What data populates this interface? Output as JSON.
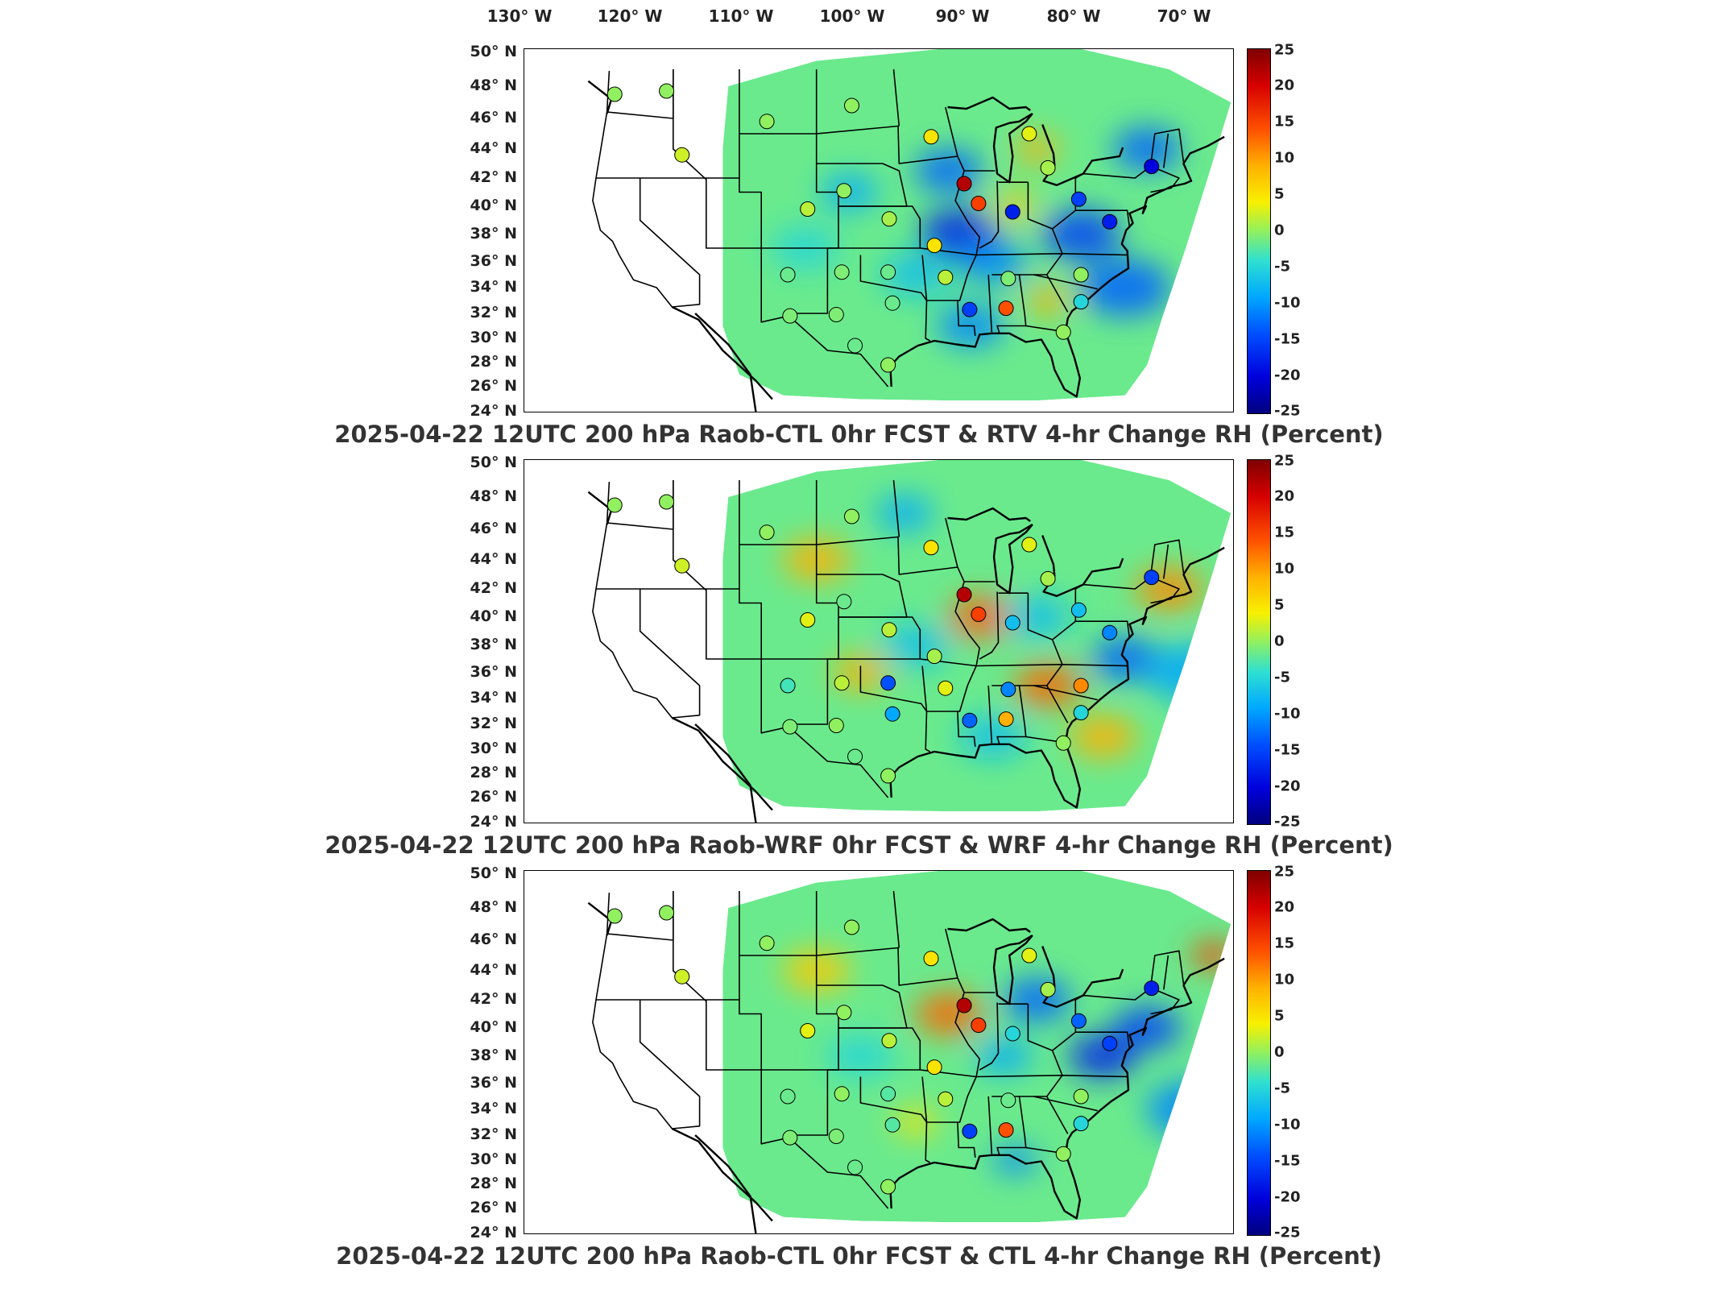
{
  "lon_labels": [
    "130° W",
    "120° W",
    "110° W",
    "100° W",
    "90° W",
    "80° W",
    "70° W"
  ],
  "lat_labels": [
    "50° N",
    "48° N",
    "46° N",
    "44° N",
    "42° N",
    "40° N",
    "38° N",
    "36° N",
    "34° N",
    "32° N",
    "30° N",
    "28° N",
    "26° N",
    "24° N"
  ],
  "colorbar": {
    "ticks": [
      "25",
      "20",
      "15",
      "10",
      "5",
      "0",
      "-5",
      "-10",
      "-15",
      "-20",
      "-25"
    ],
    "range": [
      -25,
      25
    ],
    "colors": [
      "#7f0000",
      "#d60000",
      "#ff5000",
      "#ffb000",
      "#f8f000",
      "#90f060",
      "#30e0d0",
      "#00a8ff",
      "#0050ff",
      "#0000dc",
      "#00007f"
    ]
  },
  "panels": [
    {
      "title": "2025-04-22 12UTC 200 hPa Raob-CTL 0hr FCST & RTV 4-hr Change RH (Percent)"
    },
    {
      "title": "2025-04-22 12UTC 200 hPa Raob-WRF 0hr FCST & WRF 4-hr Change RH (Percent)"
    },
    {
      "title": "2025-04-22 12UTC 200 hPa Raob-CTL 0hr FCST & CTL 4-hr Change RH (Percent)"
    }
  ],
  "stations": [
    {
      "lon": -122.3,
      "lat": 47.5,
      "values": [
        0,
        0,
        0
      ]
    },
    {
      "lon": -117.6,
      "lat": 47.7,
      "values": [
        0,
        0,
        0
      ]
    },
    {
      "lon": -108.5,
      "lat": 45.8,
      "values": [
        0,
        0,
        0
      ]
    },
    {
      "lon": -100.8,
      "lat": 46.8,
      "values": [
        0,
        0,
        0
      ]
    },
    {
      "lon": -93.6,
      "lat": 44.8,
      "values": [
        6,
        6,
        6
      ]
    },
    {
      "lon": -84.7,
      "lat": 45.0,
      "values": [
        4,
        4,
        4
      ]
    },
    {
      "lon": -116.2,
      "lat": 43.6,
      "values": [
        3,
        3,
        3
      ]
    },
    {
      "lon": -90.6,
      "lat": 41.6,
      "values": [
        22,
        22,
        22
      ]
    },
    {
      "lon": -89.3,
      "lat": 40.2,
      "values": [
        16,
        16,
        16
      ]
    },
    {
      "lon": -83.0,
      "lat": 42.7,
      "values": [
        1,
        1,
        1
      ]
    },
    {
      "lon": -86.2,
      "lat": 39.6,
      "values": [
        -18,
        -8,
        -6
      ]
    },
    {
      "lon": -80.2,
      "lat": 40.5,
      "values": [
        -16,
        -8,
        -14
      ]
    },
    {
      "lon": -73.6,
      "lat": 42.8,
      "values": [
        -20,
        -16,
        -18
      ]
    },
    {
      "lon": -77.4,
      "lat": 38.9,
      "values": [
        -18,
        -12,
        -16
      ]
    },
    {
      "lon": -101.5,
      "lat": 41.1,
      "values": [
        0,
        -2,
        0
      ]
    },
    {
      "lon": -104.8,
      "lat": 39.8,
      "values": [
        2,
        4,
        4
      ]
    },
    {
      "lon": -97.4,
      "lat": 39.1,
      "values": [
        1,
        2,
        2
      ]
    },
    {
      "lon": -93.3,
      "lat": 37.2,
      "values": [
        6,
        1,
        6
      ]
    },
    {
      "lon": -106.6,
      "lat": 35.0,
      "values": [
        -2,
        -4,
        -2
      ]
    },
    {
      "lon": -101.7,
      "lat": 35.2,
      "values": [
        -1,
        2,
        0
      ]
    },
    {
      "lon": -97.5,
      "lat": 35.2,
      "values": [
        -2,
        -15,
        -3
      ]
    },
    {
      "lon": -92.3,
      "lat": 34.8,
      "values": [
        2,
        4,
        2
      ]
    },
    {
      "lon": -86.6,
      "lat": 34.7,
      "values": [
        -1,
        -12,
        -2
      ]
    },
    {
      "lon": -80.0,
      "lat": 35.0,
      "values": [
        0,
        12,
        0
      ]
    },
    {
      "lon": -102.2,
      "lat": 31.9,
      "values": [
        -1,
        0,
        -1
      ]
    },
    {
      "lon": -97.1,
      "lat": 32.8,
      "values": [
        -2,
        -10,
        -3
      ]
    },
    {
      "lon": -90.1,
      "lat": 32.3,
      "values": [
        -16,
        -14,
        -16
      ]
    },
    {
      "lon": -86.8,
      "lat": 32.4,
      "values": [
        15,
        10,
        15
      ]
    },
    {
      "lon": -80.0,
      "lat": 32.9,
      "values": [
        -6,
        -6,
        -6
      ]
    },
    {
      "lon": -106.4,
      "lat": 31.8,
      "values": [
        -1,
        -1,
        -1
      ]
    },
    {
      "lon": -100.5,
      "lat": 29.4,
      "values": [
        -2,
        -2,
        -2
      ]
    },
    {
      "lon": -97.5,
      "lat": 27.8,
      "values": [
        0,
        0,
        0
      ]
    },
    {
      "lon": -81.6,
      "lat": 30.5,
      "values": [
        0,
        0,
        0
      ]
    }
  ]
}
